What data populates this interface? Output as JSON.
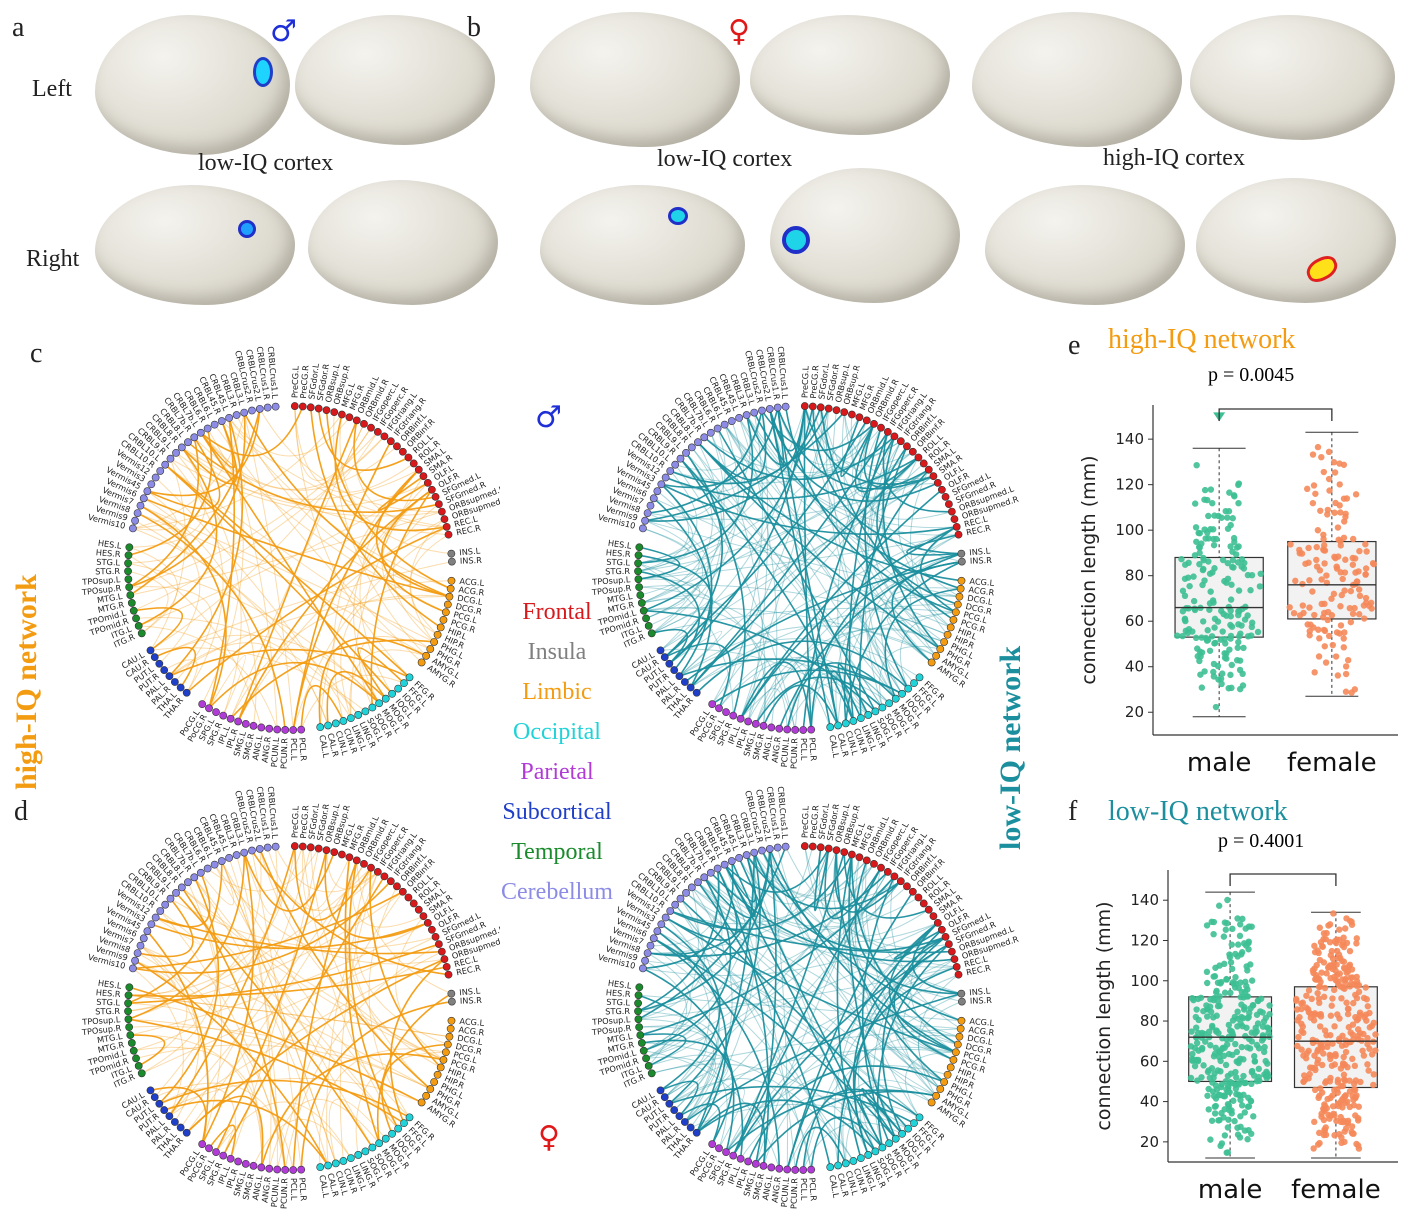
{
  "panels": {
    "a": "a",
    "b": "b",
    "c": "c",
    "d": "d",
    "e": "e",
    "f": "f"
  },
  "brains": {
    "row_left": "Left",
    "row_right": "Right",
    "male_symbol": "♂",
    "female_symbol": "♀",
    "male_low_caption": "low-IQ cortex",
    "female_low_caption": "low-IQ cortex",
    "female_high_caption": "high-IQ cortex"
  },
  "network_labels": {
    "high": "high-IQ network",
    "low": "low-IQ network"
  },
  "legend": [
    {
      "label": "Frontal",
      "color": "#d7191c"
    },
    {
      "label": "Insula",
      "color": "#808080"
    },
    {
      "label": "Limbic",
      "color": "#f39c12"
    },
    {
      "label": "Occipital",
      "color": "#1fd3d8"
    },
    {
      "label": "Parietal",
      "color": "#b03bd6"
    },
    {
      "label": "Subcortical",
      "color": "#1f3fc8"
    },
    {
      "label": "Temporal",
      "color": "#1a8a2c"
    },
    {
      "label": "Cerebellum",
      "color": "#8c8ce6"
    }
  ],
  "circle_colors": {
    "high": "#f39c12",
    "low": "#1b8f9e"
  },
  "regions": {
    "frontal": [
      "PreCG.L",
      "PreCG.R",
      "SFGdor.L",
      "SFGdor.R",
      "ORBsup.L",
      "ORBsup.R",
      "MFG.L",
      "MFG.R",
      "ORBmid.L",
      "ORBmid.R",
      "IFGoperc.L",
      "IFGoperc.R",
      "IFGtriang.L",
      "IFGtriang.R",
      "ORBinf.L",
      "ORBinf.R",
      "ROL.L",
      "ROL.R",
      "SMA.L",
      "SMA.R",
      "OLF.L",
      "OLF.R",
      "SFGmed.L",
      "SFGmed.R",
      "ORBsupmed.L",
      "ORBsupmed.R",
      "REC.L",
      "REC.R"
    ],
    "insula": [
      "INS.L",
      "INS.R"
    ],
    "limbic": [
      "ACG.L",
      "ACG.R",
      "DCG.L",
      "DCG.R",
      "PCG.L",
      "PCG.R",
      "HIP.L",
      "HIP.R",
      "PHG.L",
      "PHG.R",
      "AMYG.L",
      "AMYG.R"
    ],
    "occipital": [
      "CAL.L",
      "CAL.R",
      "CUN.L",
      "CUN.R",
      "LING.L",
      "LING.R",
      "SOG.L",
      "SOG.R",
      "MOG.L",
      "MOG.R",
      "IOG.L",
      "IOG.R",
      "FFG.L",
      "FFG.R"
    ],
    "parietal": [
      "PoCG.L",
      "PoCG.R",
      "SPG.L",
      "SPG.R",
      "IPL.L",
      "IPL.R",
      "SMG.L",
      "SMG.R",
      "ANG.L",
      "ANG.R",
      "PCUN.L",
      "PCUN.R",
      "PCL.L",
      "PCL.R"
    ],
    "subcortical": [
      "CAU.L",
      "CAU.R",
      "PUT.L",
      "PUT.R",
      "PAL.L",
      "PAL.R",
      "THA.L",
      "THA.R"
    ],
    "temporal": [
      "HES.L",
      "HES.R",
      "STG.L",
      "STG.R",
      "TPOsup.L",
      "TPOsup.R",
      "MTG.L",
      "MTG.R",
      "TPOmid.L",
      "TPOmid.R",
      "ITG.L",
      "ITG.R"
    ],
    "cerebellum": [
      "CRBLCrus1.L",
      "CRBLCrus1.R",
      "CRBLCrus2.L",
      "CRBLCrus2.R",
      "CRBL3.L",
      "CRBL3.R",
      "CRBL45.L",
      "CRBL45.R",
      "CRBL6.L",
      "CRBL6.R",
      "CRBL7b.L",
      "CRBL7b.R",
      "CRBL8.L",
      "CRBL8.R",
      "CRBL9.L",
      "CRBL9.R",
      "CRBL10.L",
      "CRBL10.R",
      "Vermis12",
      "Vermis3",
      "Vermis45",
      "Vermis6",
      "Vermis7",
      "Vermis8",
      "Vermis9",
      "Vermis10"
    ]
  },
  "boxplots": {
    "e": {
      "title": "high-IQ network",
      "title_color": "#f39c12",
      "p_text": "p = 0.0045",
      "ylabel": "connection length (mm)",
      "yticks": [
        "20",
        "40",
        "60",
        "80",
        "100",
        "120",
        "140"
      ],
      "groups": [
        {
          "label": "male",
          "color": "#3dbf93",
          "min": 18,
          "q1": 53,
          "median": 66,
          "q3": 88,
          "max": 136,
          "outlier": 150,
          "n": 190
        },
        {
          "label": "female",
          "color": "#f5885a",
          "min": 27,
          "q1": 61,
          "median": 76,
          "q3": 95,
          "max": 143,
          "n": 150
        }
      ]
    },
    "f": {
      "title": "low-IQ network",
      "title_color": "#1b8f9e",
      "p_text": "p = 0.4001",
      "ylabel": "connection length (mm)",
      "yticks": [
        "20",
        "40",
        "60",
        "80",
        "100",
        "120",
        "140"
      ],
      "groups": [
        {
          "label": "male",
          "color": "#3dbf93",
          "min": 12,
          "q1": 50,
          "median": 72,
          "q3": 92,
          "max": 144,
          "n": 320
        },
        {
          "label": "female",
          "color": "#f5885a",
          "min": 12,
          "q1": 47,
          "median": 70,
          "q3": 97,
          "max": 134,
          "n": 350
        }
      ]
    }
  }
}
